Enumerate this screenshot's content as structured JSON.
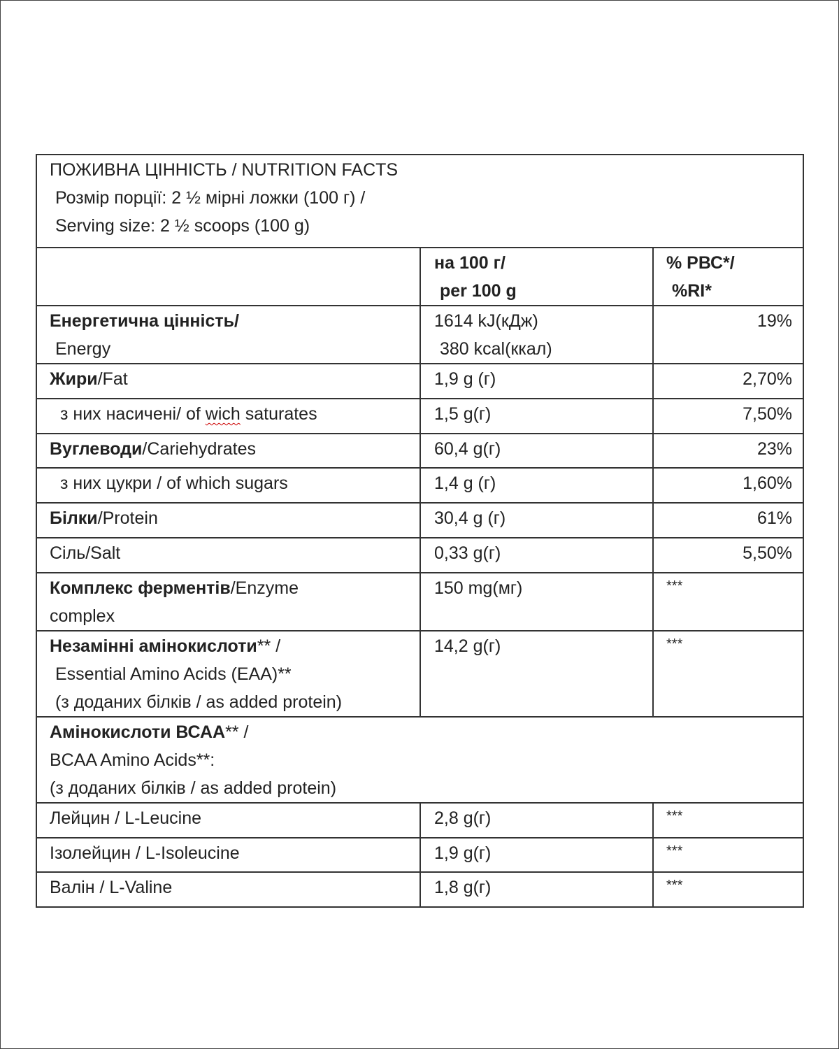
{
  "title": {
    "line1": "ПОЖИВНА ЦІННІСТЬ / NUTRITION FACTS",
    "line2": "Розмір порції: 2 ½ мірні ложки (100 г) /",
    "line3": "Serving size: 2 ½ scoops (100 g)"
  },
  "header": {
    "per_line1": "на 100 г/",
    "per_line2": "per 100 g",
    "ri_line1": "% РВС*/",
    "ri_line2": "%RI*"
  },
  "rows": [
    {
      "bold": "Енергетична цінність/",
      "rest": "",
      "line2": "Energy",
      "value": "1614 kJ(кДж)",
      "value2": "380 kcal(ккал)",
      "ri": "19%"
    },
    {
      "bold": "Жири",
      "rest": "/Fat",
      "value": "1,9 g (г)",
      "ri": "2,70%"
    },
    {
      "pre": "з них насичені/ of ",
      "misspelled": "wich",
      "post": " saturates",
      "value": "1,5 g(г)",
      "ri": "7,50%"
    },
    {
      "bold": "Вуглеводи",
      "rest": "/Cariehydrates",
      "value": "60,4 g(г)",
      "ri": "23%"
    },
    {
      "label": "з них цукри / of which sugars",
      "value": "1,4 g (г)",
      "ri": "1,60%"
    },
    {
      "bold": "Білки",
      "rest": "/Protein",
      "value": "30,4 g (г)",
      "ri": "61%"
    },
    {
      "label": "Сіль/Salt",
      "value": "0,33 g(г)",
      "ri": "5,50%"
    },
    {
      "bold": "Комплекс ферментів",
      "rest": "/Enzyme",
      "line2": "complex",
      "value": "150 mg(мг)",
      "ri": "***"
    },
    {
      "bold": "Незамінні амінокислоти",
      "rest": "** /",
      "line2": "Essential Amino Acids (EAA)**",
      "line3": "(з доданих білків / as added protein)",
      "value": "14,2 g(г)",
      "ri": "***"
    },
    {
      "bold": "Амінокислоти ВСАА",
      "rest": "** /",
      "line2": "BCAA Amino Acids**:",
      "line3": "(з доданих білків / as added protein)"
    },
    {
      "label": "Лейцин / L-Leucine",
      "value": "2,8 g(г)",
      "ri": "***"
    },
    {
      "label": "Ізолейцин / L-Isoleucine",
      "value": "1,9 g(г)",
      "ri": "***"
    },
    {
      "label": "Валін / L-Valine",
      "value": "1,8 g(г)",
      "ri": "***"
    }
  ]
}
